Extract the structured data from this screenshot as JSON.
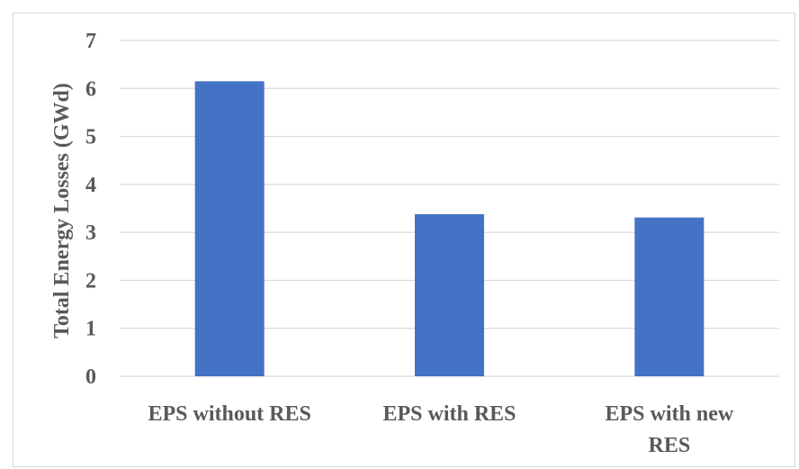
{
  "chart_data": {
    "type": "bar",
    "title": "",
    "xlabel": "",
    "ylabel": "Total Energy Losses (GWd)",
    "categories": [
      "EPS without RES",
      "EPS with RES",
      "EPS with new RES"
    ],
    "values": [
      6.15,
      3.38,
      3.31
    ],
    "ylim": [
      0,
      7
    ],
    "yticks": [
      0,
      1,
      2,
      3,
      4,
      5,
      6,
      7
    ],
    "grid": true,
    "legend": "none",
    "bar_color": "#4472c4",
    "grid_color": "#d9d9d9"
  }
}
